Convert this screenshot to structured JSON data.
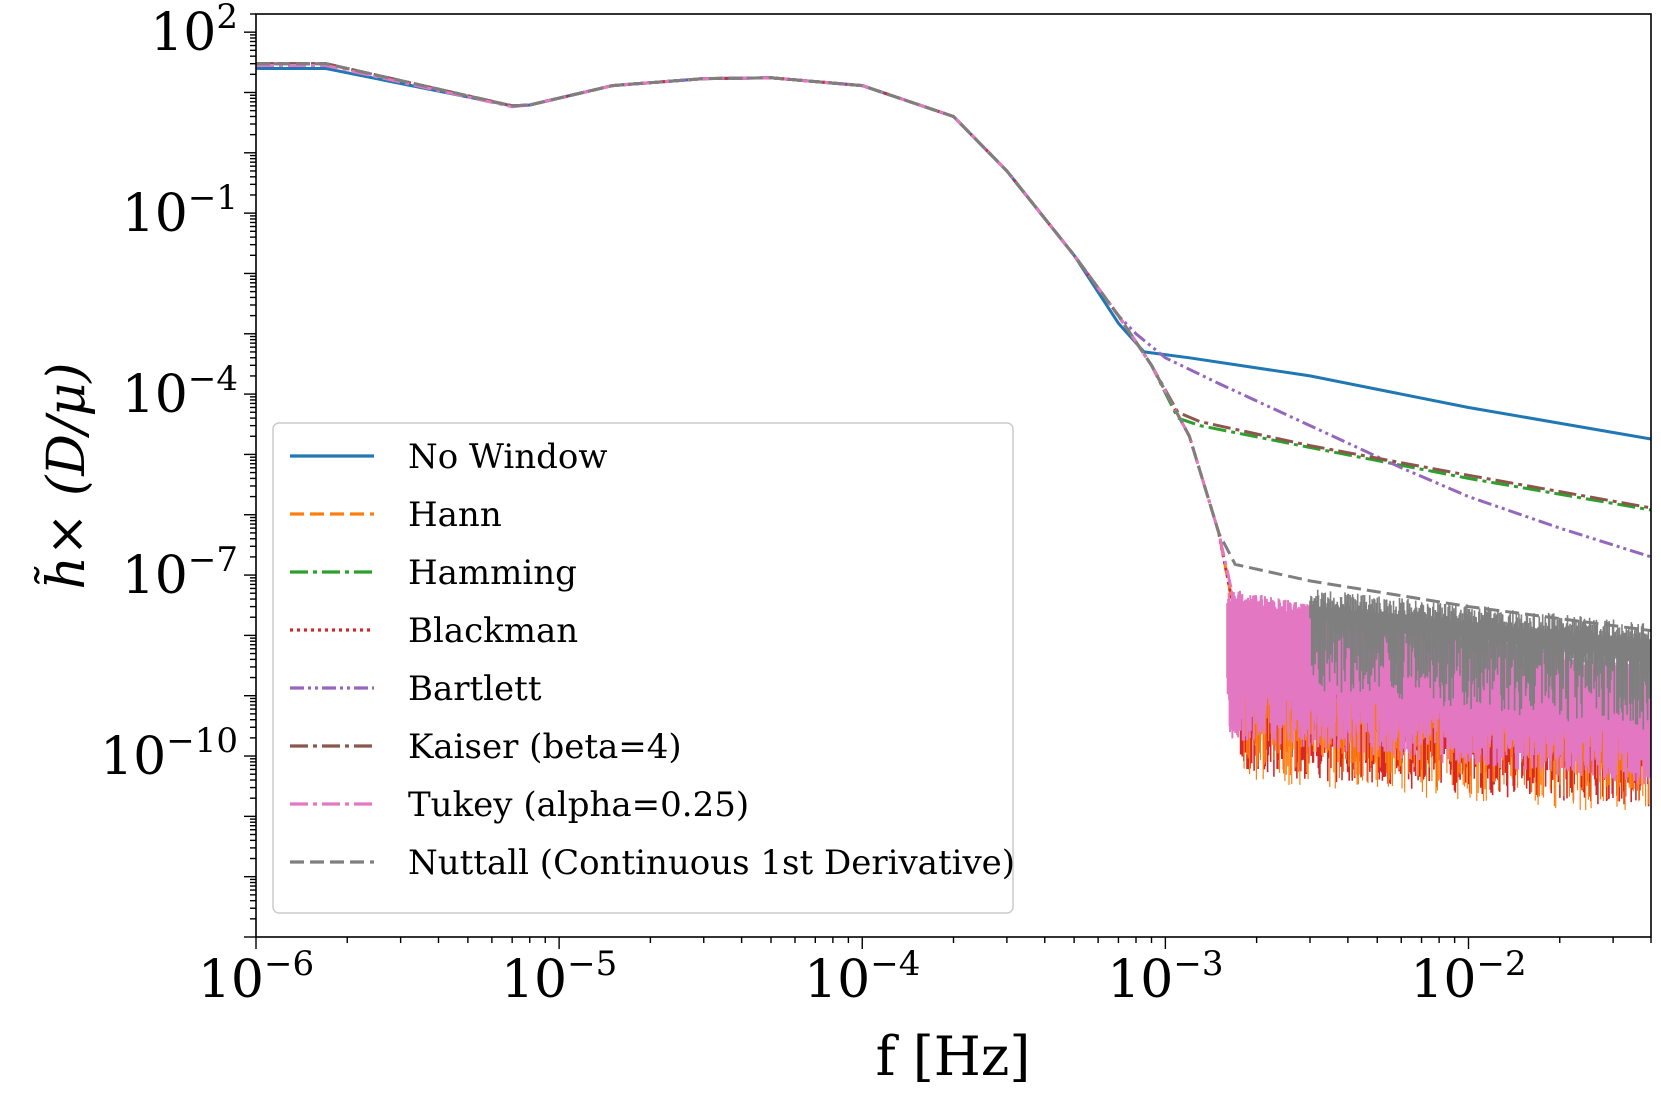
{
  "chart_data": {
    "type": "line",
    "xscale": "log",
    "yscale": "log",
    "xlabel": "f [Hz]",
    "ylabel": "h̃× (D/μ)",
    "xlim": [
      1e-06,
      0.04
    ],
    "ylim": [
      1e-13,
      200
    ],
    "x_ticks": [
      {
        "value": 1e-06,
        "base": "10",
        "exp": "−6"
      },
      {
        "value": 1e-05,
        "base": "10",
        "exp": "−5"
      },
      {
        "value": 0.0001,
        "base": "10",
        "exp": "−4"
      },
      {
        "value": 0.001,
        "base": "10",
        "exp": "−3"
      },
      {
        "value": 0.01,
        "base": "10",
        "exp": "−2"
      }
    ],
    "y_ticks": [
      {
        "value": 100,
        "base": "10",
        "exp": "2"
      },
      {
        "value": 0.1,
        "base": "10",
        "exp": "−1"
      },
      {
        "value": 0.0001,
        "base": "10",
        "exp": "−4"
      },
      {
        "value": 1e-07,
        "base": "10",
        "exp": "−7"
      },
      {
        "value": 1e-10,
        "base": "10",
        "exp": "−10"
      }
    ],
    "legend_position": "lower-left",
    "series": [
      {
        "name": "No Window",
        "color": "#1f77b4",
        "style": "solid",
        "points": [
          [
            1e-06,
            25
          ],
          [
            1.7e-06,
            25
          ],
          [
            7e-06,
            6
          ],
          [
            8e-06,
            6.2
          ],
          [
            1.5e-05,
            13
          ],
          [
            3e-05,
            17
          ],
          [
            5e-05,
            17.5
          ],
          [
            0.0001,
            13
          ],
          [
            0.0002,
            4
          ],
          [
            0.0003,
            0.5
          ],
          [
            0.0005,
            0.02
          ],
          [
            0.0007,
            0.0015
          ],
          [
            0.00085,
            0.0005
          ],
          [
            0.0012,
            0.0004
          ],
          [
            0.003,
            0.0002
          ],
          [
            0.01,
            6e-05
          ],
          [
            0.04,
            1.8e-05
          ]
        ]
      },
      {
        "name": "Hann",
        "color": "#ff7f0e",
        "style": "dashed",
        "points": [
          [
            1e-06,
            30
          ],
          [
            1.7e-06,
            30
          ],
          [
            7e-06,
            6
          ],
          [
            8e-06,
            6.2
          ],
          [
            1.5e-05,
            13
          ],
          [
            3e-05,
            17
          ],
          [
            5e-05,
            17.5
          ],
          [
            0.0001,
            13
          ],
          [
            0.0002,
            4
          ],
          [
            0.0003,
            0.5
          ],
          [
            0.0005,
            0.02
          ],
          [
            0.0007,
            0.002
          ],
          [
            0.0009,
            0.0003
          ],
          [
            0.0012,
            2e-05
          ],
          [
            0.0015,
            5e-07
          ],
          [
            0.0017,
            2e-08
          ],
          [
            0.002,
            4e-09
          ],
          [
            0.005,
            2e-09
          ],
          [
            0.01,
            8e-10
          ],
          [
            0.04,
            4e-10
          ]
        ]
      },
      {
        "name": "Hamming",
        "color": "#2ca02c",
        "style": "dashdot",
        "points": [
          [
            1e-06,
            30
          ],
          [
            1.7e-06,
            30
          ],
          [
            7e-06,
            6
          ],
          [
            8e-06,
            6.2
          ],
          [
            1.5e-05,
            13
          ],
          [
            3e-05,
            17
          ],
          [
            5e-05,
            17.5
          ],
          [
            0.0001,
            13
          ],
          [
            0.0002,
            4
          ],
          [
            0.0003,
            0.5
          ],
          [
            0.0005,
            0.02
          ],
          [
            0.0007,
            0.002
          ],
          [
            0.0009,
            0.0003
          ],
          [
            0.0011,
            4e-05
          ],
          [
            0.0013,
            3e-05
          ],
          [
            0.003,
            1.3e-05
          ],
          [
            0.01,
            4e-06
          ],
          [
            0.04,
            1.2e-06
          ]
        ]
      },
      {
        "name": "Blackman",
        "color": "#d62728",
        "style": "dotted",
        "points": [
          [
            1e-06,
            30
          ],
          [
            1.7e-06,
            30
          ],
          [
            7e-06,
            6
          ],
          [
            8e-06,
            6.2
          ],
          [
            1.5e-05,
            13
          ],
          [
            3e-05,
            17
          ],
          [
            5e-05,
            17.5
          ],
          [
            0.0001,
            13
          ],
          [
            0.0002,
            4
          ],
          [
            0.0003,
            0.5
          ],
          [
            0.0005,
            0.02
          ],
          [
            0.0007,
            0.002
          ],
          [
            0.0009,
            0.0003
          ],
          [
            0.0012,
            2e-05
          ],
          [
            0.0015,
            5e-07
          ],
          [
            0.0017,
            2e-08
          ],
          [
            0.002,
            4e-09
          ],
          [
            0.005,
            2e-09
          ],
          [
            0.01,
            8e-10
          ],
          [
            0.04,
            4e-10
          ]
        ]
      },
      {
        "name": "Bartlett",
        "color": "#9467bd",
        "style": "dashdotdot",
        "points": [
          [
            1e-06,
            30
          ],
          [
            1.7e-06,
            30
          ],
          [
            7e-06,
            6
          ],
          [
            8e-06,
            6.2
          ],
          [
            1.5e-05,
            13
          ],
          [
            3e-05,
            17
          ],
          [
            5e-05,
            17.5
          ],
          [
            0.0001,
            13
          ],
          [
            0.0002,
            4
          ],
          [
            0.0003,
            0.5
          ],
          [
            0.0005,
            0.02
          ],
          [
            0.0007,
            0.002
          ],
          [
            0.0008,
            0.001
          ],
          [
            0.001,
            0.0004
          ],
          [
            0.0015,
            0.00015
          ],
          [
            0.003,
            3e-05
          ],
          [
            0.006,
            6e-06
          ],
          [
            0.01,
            2e-06
          ],
          [
            0.02,
            6e-07
          ],
          [
            0.04,
            2e-07
          ]
        ]
      },
      {
        "name": "Kaiser (beta=4)",
        "color": "#8c564b",
        "style": "dashdot",
        "points": [
          [
            1e-06,
            30
          ],
          [
            1.7e-06,
            30
          ],
          [
            7e-06,
            6
          ],
          [
            8e-06,
            6.2
          ],
          [
            1.5e-05,
            13
          ],
          [
            3e-05,
            17
          ],
          [
            5e-05,
            17.5
          ],
          [
            0.0001,
            13
          ],
          [
            0.0002,
            4
          ],
          [
            0.0003,
            0.5
          ],
          [
            0.0005,
            0.02
          ],
          [
            0.0007,
            0.002
          ],
          [
            0.0009,
            0.0003
          ],
          [
            0.0011,
            5e-05
          ],
          [
            0.0013,
            3.5e-05
          ],
          [
            0.003,
            1.4e-05
          ],
          [
            0.01,
            4.5e-06
          ],
          [
            0.04,
            1.3e-06
          ]
        ]
      },
      {
        "name": "Tukey (alpha=0.25)",
        "color": "#e377c2",
        "style": "dashdot",
        "points": [
          [
            1e-06,
            28
          ],
          [
            1.7e-06,
            28
          ],
          [
            7e-06,
            5.8
          ],
          [
            8e-06,
            6.2
          ],
          [
            1.5e-05,
            13
          ],
          [
            3e-05,
            17
          ],
          [
            5e-05,
            17.5
          ],
          [
            0.0001,
            13
          ],
          [
            0.0002,
            4
          ],
          [
            0.0003,
            0.5
          ],
          [
            0.0005,
            0.02
          ],
          [
            0.0007,
            0.002
          ],
          [
            0.0009,
            0.0003
          ],
          [
            0.0012,
            2e-05
          ],
          [
            0.0015,
            5e-07
          ],
          [
            0.0017,
            3e-08
          ],
          [
            0.002,
            1e-08
          ],
          [
            0.005,
            8e-09
          ],
          [
            0.01,
            5e-09
          ],
          [
            0.04,
            3e-09
          ]
        ]
      },
      {
        "name": "Nuttall (Continuous 1st Derivative)",
        "color": "#7f7f7f",
        "style": "dashed",
        "points": [
          [
            1e-06,
            30
          ],
          [
            1.7e-06,
            30
          ],
          [
            7e-06,
            6
          ],
          [
            8e-06,
            6.2
          ],
          [
            1.5e-05,
            13
          ],
          [
            3e-05,
            17
          ],
          [
            5e-05,
            17.5
          ],
          [
            0.0001,
            13
          ],
          [
            0.0002,
            4
          ],
          [
            0.0003,
            0.5
          ],
          [
            0.0005,
            0.02
          ],
          [
            0.0007,
            0.002
          ],
          [
            0.0009,
            0.0003
          ],
          [
            0.0012,
            2e-05
          ],
          [
            0.0015,
            5e-07
          ],
          [
            0.0017,
            1.5e-07
          ],
          [
            0.003,
            8e-08
          ],
          [
            0.01,
            3e-08
          ],
          [
            0.04,
            1.2e-08
          ]
        ]
      }
    ]
  }
}
